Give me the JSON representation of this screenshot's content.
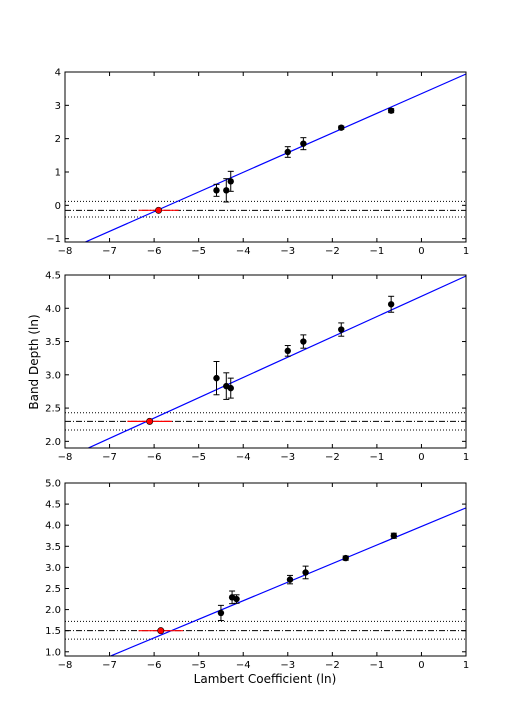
{
  "figure": {
    "xlabel": "Lambert Coefficient (ln)",
    "ylabel": "Band Depth (ln)"
  },
  "chart_data": [
    {
      "type": "scatter",
      "title": "",
      "xlim": [
        -8,
        1
      ],
      "ylim": [
        -1.1,
        4
      ],
      "xticks": [
        -8,
        -7,
        -6,
        -5,
        -4,
        -3,
        -2,
        -1,
        0,
        1
      ],
      "yticks": [
        -1,
        0,
        1,
        2,
        3,
        4
      ],
      "grid": false,
      "legend": "none",
      "points": {
        "x": [
          -4.6,
          -4.38,
          -4.28,
          -3.0,
          -2.65,
          -1.8,
          -0.68
        ],
        "y": [
          0.45,
          0.45,
          0.72,
          1.6,
          1.85,
          2.33,
          2.84
        ],
        "yerr": [
          0.18,
          0.35,
          0.3,
          0.16,
          0.18,
          0.05,
          0.06
        ],
        "color": "#000000"
      },
      "fit_line": {
        "slope": 0.59,
        "intercept": 3.35,
        "color": "#0000ff"
      },
      "reference": {
        "y": -0.15,
        "band": [
          -0.35,
          0.12
        ]
      },
      "intersection": {
        "x": -5.9,
        "y": -0.15,
        "xerr": 0.45,
        "color": "#ff0000"
      }
    },
    {
      "type": "scatter",
      "title": "",
      "xlim": [
        -8,
        1
      ],
      "ylim": [
        1.9,
        4.5
      ],
      "xticks": [
        -8,
        -7,
        -6,
        -5,
        -4,
        -3,
        -2,
        -1,
        0,
        1
      ],
      "yticks": [
        2.0,
        2.5,
        3.0,
        3.5,
        4.0,
        4.5
      ],
      "grid": false,
      "legend": "none",
      "points": {
        "x": [
          -4.6,
          -4.38,
          -4.28,
          -3.0,
          -2.65,
          -1.8,
          -0.68
        ],
        "y": [
          2.95,
          2.83,
          2.8,
          3.36,
          3.5,
          3.68,
          4.06
        ],
        "yerr": [
          0.25,
          0.2,
          0.15,
          0.08,
          0.1,
          0.1,
          0.12
        ],
        "color": "#000000"
      },
      "fit_line": {
        "slope": 0.305,
        "intercept": 4.18,
        "color": "#0000ff"
      },
      "reference": {
        "y": 2.3,
        "band": [
          2.17,
          2.43
        ]
      },
      "intersection": {
        "x": -6.1,
        "y": 2.3,
        "xerr": 0.5,
        "color": "#ff0000"
      }
    },
    {
      "type": "scatter",
      "title": "",
      "xlim": [
        -8,
        1
      ],
      "ylim": [
        0.9,
        5.0
      ],
      "xticks": [
        -8,
        -7,
        -6,
        -5,
        -4,
        -3,
        -2,
        -1,
        0,
        1
      ],
      "yticks": [
        1.0,
        1.5,
        2.0,
        2.5,
        3.0,
        3.5,
        4.0,
        4.5,
        5.0
      ],
      "grid": false,
      "legend": "none",
      "points": {
        "x": [
          -4.5,
          -4.25,
          -4.15,
          -2.95,
          -2.6,
          -1.7,
          -0.62
        ],
        "y": [
          1.92,
          2.29,
          2.25,
          2.71,
          2.88,
          3.22,
          3.75
        ],
        "yerr": [
          0.18,
          0.15,
          0.1,
          0.1,
          0.15,
          0.05,
          0.06
        ],
        "color": "#000000"
      },
      "fit_line": {
        "slope": 0.44,
        "intercept": 3.97,
        "color": "#0000ff"
      },
      "reference": {
        "y": 1.5,
        "band": [
          1.3,
          1.72
        ]
      },
      "intersection": {
        "x": -5.85,
        "y": 1.5,
        "xerr": 0.5,
        "color": "#ff0000"
      }
    }
  ]
}
